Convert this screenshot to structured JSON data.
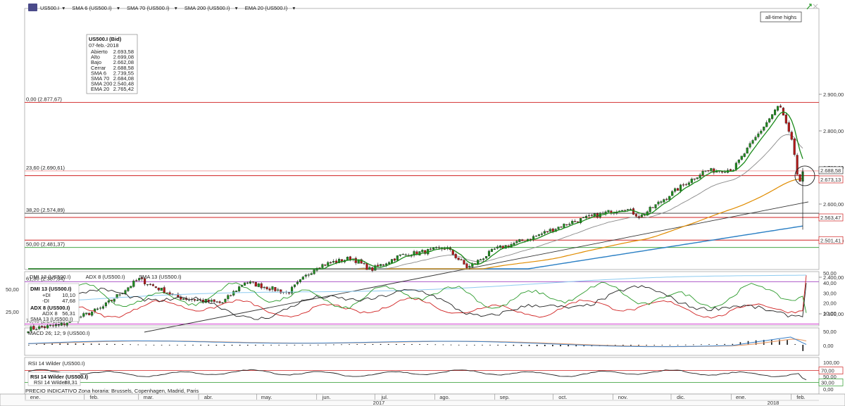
{
  "toolbar": {
    "items": [
      {
        "label": "US500.I",
        "color": "#222222"
      },
      {
        "label": "SMA 6 (US500.I)",
        "color": "#1a8a1a"
      },
      {
        "label": "SMA 70 (US500.I)",
        "color": "#e08c00"
      },
      {
        "label": "SMA 200 (US500.I)",
        "color": "#2a7fc4"
      },
      {
        "label": "EMA 20 (US500.I)",
        "color": "#777777"
      }
    ]
  },
  "annotation": "all-time highs",
  "fib_levels": [
    {
      "label": "0,00 (2.877,67)",
      "value": 2877.67,
      "color": "#d02020"
    },
    {
      "label": "23,60 (2.690,61)",
      "value": 2690.61,
      "color": "#f0a0a0"
    },
    {
      "label": "38,20 (2.574,89)",
      "value": 2574.89,
      "color": "#333333"
    },
    {
      "label": "50,00 (2.481,37)",
      "value": 2481.37,
      "color": "#2a9a2a"
    },
    {
      "label": "61,80 (2.387,84)",
      "value": 2387.84,
      "color": "#a040c0"
    },
    {
      "label": "76,40 (2.272,12)",
      "value": 2272.12,
      "color": "#d040d0"
    }
  ],
  "extra_lines": [
    {
      "value": 2677.6,
      "color": "#d02020"
    },
    {
      "value": 2563.47,
      "color": "#d02020"
    },
    {
      "value": 2501.41,
      "color": "#d02020"
    }
  ],
  "price_tags": [
    "2.688,58",
    "2.673,13",
    "2.563,47",
    "2.501,41"
  ],
  "info_box": {
    "title": "US500.I (Bid)",
    "date": "07-feb.-2018",
    "rows": [
      {
        "label": "Abierto",
        "value": "2.693,58",
        "color": "#222222"
      },
      {
        "label": "Alto",
        "value": "2.699,08",
        "color": "#222222"
      },
      {
        "label": "Bajo",
        "value": "2.662,08",
        "color": "#222222"
      },
      {
        "label": "Cerrar",
        "value": "2.688,58",
        "color": "#222222"
      },
      {
        "label": "SMA 6",
        "value": "2.739,55",
        "color": "#1a8a1a"
      },
      {
        "label": "SMA 70",
        "value": "2.684,08",
        "color": "#e08c00"
      },
      {
        "label": "SMA 200",
        "value": "2.540,48",
        "color": "#2a7fc4"
      },
      {
        "label": "EMA 20",
        "value": "2.765,42",
        "color": "#777777"
      }
    ]
  },
  "dmi_panel": {
    "header": [
      "DMI 13 (US500.I)",
      "ADX 8 (US500.I)",
      "SMA 13 (US500.I)"
    ],
    "box_title": "DMI 13 (US500.I)",
    "rows": [
      {
        "label": "+DI",
        "value": "10,10",
        "color": "#2a9a2a"
      },
      {
        "label": "-DI",
        "value": "47,68",
        "color": "#d02020"
      }
    ],
    "box_title2": "ADX 8 (US500.I)",
    "rows2": [
      {
        "label": "ADX 8",
        "value": "56,31",
        "color": "#222222"
      }
    ],
    "box_title3": "SMA 13 (US500.I)",
    "left_ticks": [
      "50,00",
      "25,00"
    ]
  },
  "macd_panel": {
    "header": "MACD 26; 12; 9 (US500.I)"
  },
  "rsi_panel": {
    "header": "RSI 14 Wilder (US500.I)",
    "box_title": "RSI 14 Wilder (US500.I)",
    "row": {
      "label": "RSI 14 Wilder",
      "value": "38,31"
    },
    "tag": "70,00",
    "tag2": "30,00"
  },
  "footer_note": "PRECIO INDICATIVO  Zona horaria: Brussels, Copenhagen, Madrid, Paris",
  "x_axis": {
    "months": [
      "ene.",
      "feb.",
      "mar.",
      "abr.",
      "may.",
      "jun.",
      "jul.",
      "ago.",
      "sep.",
      "oct.",
      "nov.",
      "dic.",
      "ene.",
      "feb."
    ],
    "years": [
      "2017",
      "2018"
    ]
  },
  "chart_data": [
    {
      "type": "candlestick",
      "title": "US500.I",
      "x": [
        "2017-01-03",
        "2018-02-07"
      ],
      "y_ticks": [
        "2.900,00",
        "2.800,00",
        "2.700,00",
        "2.600,00",
        "2.500,00",
        "2.400,00",
        "2.300,00"
      ],
      "ylim": [
        2250,
        2900
      ],
      "anchors": [
        {
          "x": "2017-01-03",
          "close": 2258
        },
        {
          "x": "2017-01-20",
          "close": 2270
        },
        {
          "x": "2017-02-10",
          "close": 2316
        },
        {
          "x": "2017-03-01",
          "close": 2395
        },
        {
          "x": "2017-03-21",
          "close": 2345
        },
        {
          "x": "2017-04-13",
          "close": 2329
        },
        {
          "x": "2017-04-25",
          "close": 2388
        },
        {
          "x": "2017-05-17",
          "close": 2357
        },
        {
          "x": "2017-06-01",
          "close": 2430
        },
        {
          "x": "2017-06-19",
          "close": 2453
        },
        {
          "x": "2017-06-29",
          "close": 2420
        },
        {
          "x": "2017-07-14",
          "close": 2459
        },
        {
          "x": "2017-08-07",
          "close": 2480
        },
        {
          "x": "2017-08-18",
          "close": 2425
        },
        {
          "x": "2017-09-01",
          "close": 2476
        },
        {
          "x": "2017-09-20",
          "close": 2508
        },
        {
          "x": "2017-10-10",
          "close": 2550
        },
        {
          "x": "2017-11-07",
          "close": 2590
        },
        {
          "x": "2017-11-15",
          "close": 2565
        },
        {
          "x": "2017-12-04",
          "close": 2640
        },
        {
          "x": "2017-12-18",
          "close": 2690
        },
        {
          "x": "2018-01-02",
          "close": 2695
        },
        {
          "x": "2018-01-26",
          "close": 2872
        },
        {
          "x": "2018-02-02",
          "close": 2762
        },
        {
          "x": "2018-02-05",
          "close": 2648
        },
        {
          "x": "2018-02-07",
          "close": 2688.58
        }
      ],
      "series": [
        {
          "name": "SMA 6 (US500.I)",
          "color": "#1a8a1a"
        },
        {
          "name": "SMA 70 (US500.I)",
          "color": "#e08c00"
        },
        {
          "name": "SMA 200 (US500.I)",
          "color": "#2a7fc4"
        },
        {
          "name": "EMA 20 (US500.I)",
          "color": "#8a8a8a"
        }
      ]
    },
    {
      "type": "line",
      "title": "DMI 13 / ADX 8",
      "ylim": [
        0,
        55
      ],
      "y_ticks": [
        "50,00",
        "40,00",
        "30,00",
        "20,00",
        "10,00"
      ],
      "series": [
        {
          "name": "+DI",
          "color": "#2a9a2a",
          "final": 10.1
        },
        {
          "name": "-DI",
          "color": "#d02020",
          "final": 47.68
        },
        {
          "name": "ADX 8",
          "color": "#222222",
          "final": 56.31
        },
        {
          "name": "SMA 13 (US500.I)",
          "color": "#8ecbf0"
        }
      ]
    },
    {
      "type": "line",
      "title": "MACD 26; 12; 9",
      "y_ticks": [
        "50,00",
        "0,00"
      ]
    },
    {
      "type": "line",
      "title": "RSI 14 Wilder",
      "ylim": [
        0,
        100
      ],
      "y_ticks": [
        "100,00",
        "50,00",
        "0,00"
      ],
      "final": 38.31
    }
  ]
}
